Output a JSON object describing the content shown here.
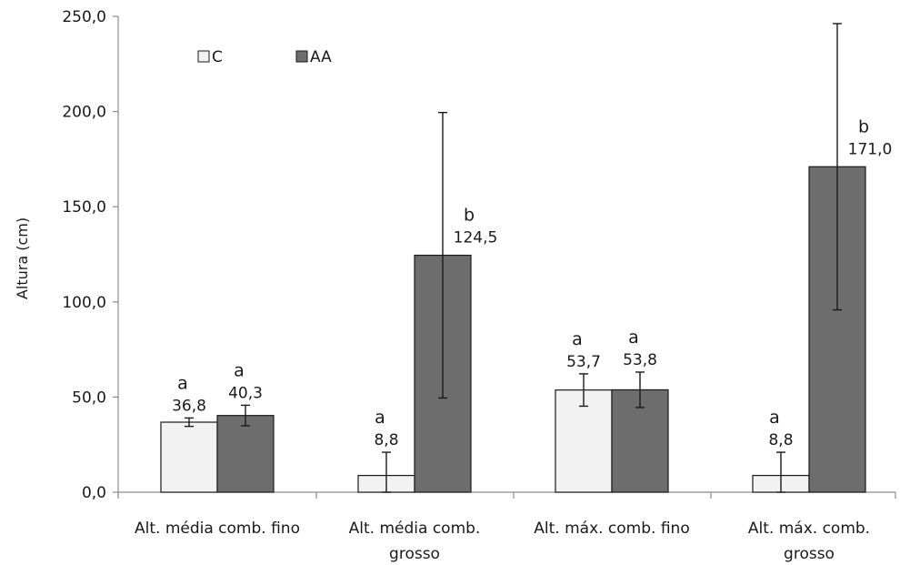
{
  "chart_data": {
    "type": "bar",
    "ylabel": "Altura (cm)",
    "xlabel": "",
    "ylim": [
      0,
      250
    ],
    "y_ticks": [
      "0,0",
      "50,0",
      "100,0",
      "150,0",
      "200,0",
      "250,0"
    ],
    "y_tick_values": [
      0,
      50,
      100,
      150,
      200,
      250
    ],
    "grid": false,
    "legend_position": "top-left",
    "categories": [
      [
        "Alt. média comb. fino"
      ],
      [
        "Alt. média comb.",
        "grosso"
      ],
      [
        "Alt. máx. comb. fino"
      ],
      [
        "Alt. máx. comb.",
        "grosso"
      ]
    ],
    "series": [
      {
        "name": "C",
        "color": "#f2f2f2",
        "values": [
          36.8,
          8.8,
          53.7,
          8.8
        ],
        "value_labels": [
          "36,8",
          "8,8",
          "53,7",
          "8,8"
        ],
        "error": [
          2.2,
          12.2,
          8.5,
          12.2
        ],
        "letters": [
          "a",
          "a",
          "a",
          "a"
        ]
      },
      {
        "name": "AA",
        "color": "#6d6d6d",
        "values": [
          40.3,
          124.5,
          53.8,
          171.0
        ],
        "value_labels": [
          "40,3",
          "124,5",
          "53,8",
          "171,0"
        ],
        "error": [
          5.4,
          75.0,
          9.3,
          75.2
        ],
        "letters": [
          "a",
          "b",
          "a",
          "b"
        ]
      }
    ]
  }
}
